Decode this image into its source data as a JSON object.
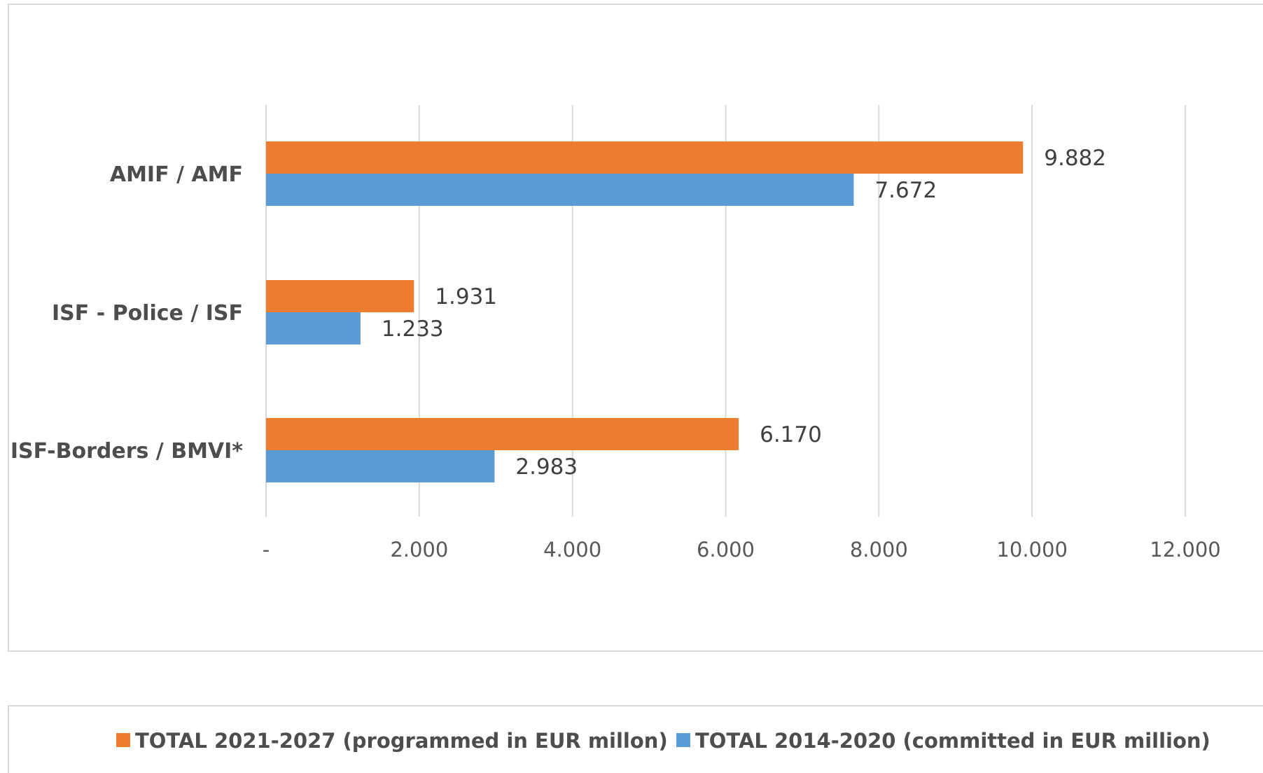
{
  "chart_data": {
    "type": "bar",
    "orientation": "horizontal",
    "categories": [
      "AMIF / AMF",
      "ISF - Police / ISF",
      "ISF-Borders / BMVI*"
    ],
    "series": [
      {
        "name": "TOTAL 2021-2027 (programmed in EUR millon)",
        "values": [
          9882,
          1931,
          6170
        ],
        "labels": [
          "9.882",
          "1.931",
          "6.170"
        ],
        "color": "#ED7D31"
      },
      {
        "name": "TOTAL 2014-2020 (committed in EUR million)",
        "values": [
          7672,
          1233,
          2983
        ],
        "labels": [
          "7.672",
          "1.233",
          "2.983"
        ],
        "color": "#5B9BD5"
      }
    ],
    "xlim": [
      0,
      12000
    ],
    "xticks": [
      0,
      2000,
      4000,
      6000,
      8000,
      10000,
      12000
    ],
    "xtick_labels": [
      "-",
      "2.000",
      "4.000",
      "6.000",
      "8.000",
      "10.000",
      "12.000"
    ],
    "grid": true,
    "legend_position": "bottom",
    "title": "",
    "xlabel": "",
    "ylabel": ""
  }
}
